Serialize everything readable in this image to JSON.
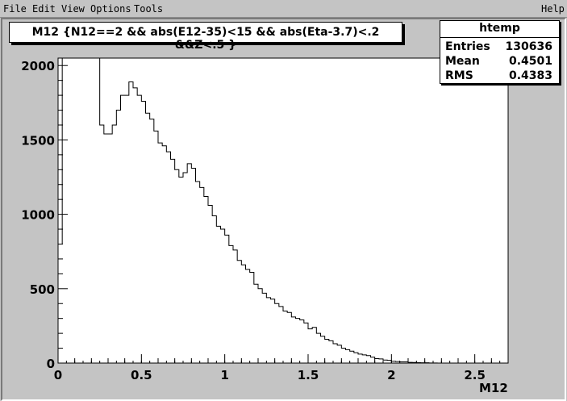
{
  "menu": {
    "file": "File",
    "edit": "Edit",
    "view": "View",
    "options": "Options",
    "tools": "Tools",
    "help": "Help"
  },
  "title": "M12 {N12==2 && abs(E12-35)<15 && abs(Eta-3.7)<.2 &&Z<.5 }",
  "stats": {
    "name": "htemp",
    "rows": [
      {
        "key": "Entries",
        "value": "130636"
      },
      {
        "key": "Mean",
        "value": "0.4501"
      },
      {
        "key": "RMS",
        "value": "0.4383"
      }
    ]
  },
  "colors": {
    "background": "#c4c4c4",
    "plot_area": "#ffffff",
    "line": "#000000"
  },
  "chart_data": {
    "type": "histogram",
    "xlabel": "M12",
    "ylabel": "",
    "xlim": [
      0,
      2.7
    ],
    "ylim": [
      0,
      2050
    ],
    "xticks": [
      "0",
      "0.5",
      "1",
      "1.5",
      "2",
      "2.5"
    ],
    "yticks": [
      "0",
      "500",
      "1000",
      "1500",
      "2000"
    ],
    "bin_width": 0.025,
    "bin_start": 0,
    "values": [
      800,
      2050,
      2050,
      2050,
      2050,
      2050,
      2050,
      2050,
      2050,
      2050,
      1600,
      1540,
      1540,
      1600,
      1700,
      1800,
      1800,
      1890,
      1850,
      1800,
      1760,
      1680,
      1640,
      1560,
      1480,
      1460,
      1420,
      1370,
      1300,
      1250,
      1280,
      1340,
      1310,
      1220,
      1180,
      1120,
      1060,
      990,
      920,
      900,
      860,
      790,
      760,
      690,
      660,
      630,
      610,
      530,
      500,
      470,
      440,
      430,
      400,
      380,
      350,
      340,
      310,
      300,
      290,
      270,
      230,
      240,
      200,
      180,
      160,
      150,
      130,
      120,
      100,
      90,
      80,
      70,
      60,
      55,
      50,
      40,
      30,
      28,
      20,
      18,
      12,
      10,
      8,
      8,
      5,
      4,
      3,
      2,
      2,
      1,
      1,
      0,
      0,
      0,
      0,
      0,
      0,
      0,
      0,
      0,
      0,
      0,
      0,
      0,
      0,
      0,
      0,
      0
    ]
  }
}
